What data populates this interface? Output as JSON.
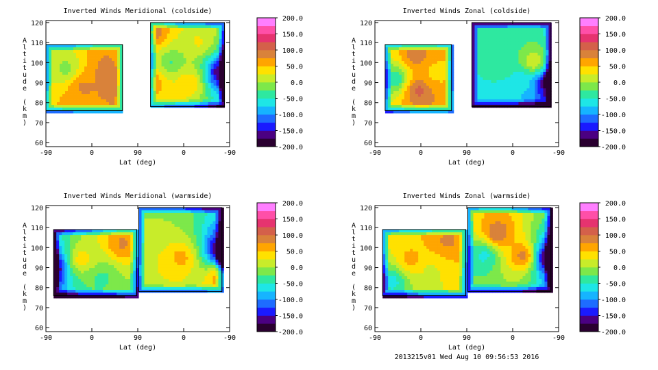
{
  "colors": {
    "background": "#ffffff",
    "axis": "#000000",
    "contour_line": "#000000",
    "colormap": [
      "#2a0030",
      "#4b0082",
      "#1a1aff",
      "#1e6cff",
      "#16b4ff",
      "#1ee6e6",
      "#2ee8a0",
      "#7de84a",
      "#c8ec2a",
      "#ffe100",
      "#ffa500",
      "#d9823a",
      "#d4604a",
      "#e6336f",
      "#ff4fa8",
      "#ff7fff"
    ]
  },
  "footer_text": "2013215v01 Wed Aug 10 09:56:53 2016",
  "chart_data": [
    {
      "type": "contour",
      "title": "Inverted Winds Meridional (coldside)",
      "xlabel": "Lat (deg)",
      "ylabel": "Altitude (km)",
      "x_tick_labels": [
        "-90",
        "0",
        "90",
        "0",
        "-90"
      ],
      "y_ticks": [
        60,
        70,
        80,
        90,
        100,
        110,
        120
      ],
      "ylim": [
        58,
        121
      ],
      "colorbar": {
        "min": -200,
        "max": 200,
        "labels": [
          "200.0",
          "150.0",
          "100.0",
          "50.0",
          "0.0",
          "-50.0",
          "-100.0",
          "-150.0",
          "-200.0"
        ]
      },
      "regions": [
        {
          "lat_range": [
            -90,
            60
          ],
          "alt_range": [
            76,
            109
          ],
          "hot_spots": [
            {
              "lat": -17,
              "alt": 88,
              "value": 80
            },
            {
              "lat": 40,
              "alt": 95,
              "value": 100
            },
            {
              "lat": 50,
              "alt": 101,
              "value": 70
            },
            {
              "lat": -50,
              "alt": 97,
              "value": -10
            }
          ]
        },
        {
          "lat_range": [
            115,
            260
          ],
          "alt_range": [
            78,
            120
          ],
          "hot_spots": [
            {
              "lat": 120,
              "alt": 115,
              "value": 90
            },
            {
              "lat": 120,
              "alt": 90,
              "value": 70
            },
            {
              "lat": 190,
              "alt": 90,
              "value": 50
            },
            {
              "lat": 210,
              "alt": 110,
              "value": 30
            },
            {
              "lat": 155,
              "alt": 100,
              "value": -30
            },
            {
              "lat": 255,
              "alt": 95,
              "value": -190
            }
          ]
        }
      ]
    },
    {
      "type": "contour",
      "title": "Inverted Winds Zonal (coldside)",
      "xlabel": "Lat (deg)",
      "ylabel": "Altitude (km)",
      "x_tick_labels": [
        "-90",
        "0",
        "90",
        "0",
        "-90"
      ],
      "y_ticks": [
        60,
        70,
        80,
        90,
        100,
        110,
        120
      ],
      "ylim": [
        58,
        121
      ],
      "colorbar": {
        "min": -200,
        "max": 200,
        "labels": [
          "200.0",
          "150.0",
          "100.0",
          "50.0",
          "0.0",
          "-50.0",
          "-100.0",
          "-150.0",
          "-200.0"
        ]
      },
      "regions": [
        {
          "lat_range": [
            -70,
            60
          ],
          "alt_range": [
            76,
            109
          ],
          "hot_spots": [
            {
              "lat": -5,
              "alt": 86,
              "value": 110
            },
            {
              "lat": -10,
              "alt": 103,
              "value": 90
            },
            {
              "lat": 30,
              "alt": 95,
              "value": 40
            },
            {
              "lat": -50,
              "alt": 92,
              "value": -50
            }
          ]
        },
        {
          "lat_range": [
            100,
            255
          ],
          "alt_range": [
            78,
            120
          ],
          "hot_spots": [
            {
              "lat": 200,
              "alt": 90,
              "value": -70
            },
            {
              "lat": 160,
              "alt": 98,
              "value": -40
            },
            {
              "lat": 220,
              "alt": 100,
              "value": 30
            },
            {
              "lat": 250,
              "alt": 90,
              "value": -200
            }
          ]
        }
      ]
    },
    {
      "type": "contour",
      "title": "Inverted Winds Meridional (warmside)",
      "xlabel": "Lat (deg)",
      "ylabel": "Altitude (km)",
      "x_tick_labels": [
        "-90",
        "0",
        "90",
        "0",
        "-90"
      ],
      "y_ticks": [
        60,
        70,
        80,
        90,
        100,
        110,
        120
      ],
      "ylim": [
        58,
        121
      ],
      "colorbar": {
        "min": -200,
        "max": 200,
        "labels": [
          "200.0",
          "150.0",
          "100.0",
          "50.0",
          "0.0",
          "-50.0",
          "-100.0",
          "-150.0",
          "-200.0"
        ]
      },
      "regions": [
        {
          "lat_range": [
            -75,
            88
          ],
          "alt_range": [
            76,
            109
          ],
          "hot_spots": [
            {
              "lat": 60,
              "alt": 102,
              "value": 80
            },
            {
              "lat": -20,
              "alt": 94,
              "value": 40
            },
            {
              "lat": -80,
              "alt": 90,
              "value": -200
            },
            {
              "lat": 20,
              "alt": 85,
              "value": -30
            }
          ]
        },
        {
          "lat_range": [
            92,
            255
          ],
          "alt_range": [
            78,
            120
          ],
          "hot_spots": [
            {
              "lat": 175,
              "alt": 95,
              "value": 60
            },
            {
              "lat": 250,
              "alt": 85,
              "value": 70
            },
            {
              "lat": 255,
              "alt": 98,
              "value": -200
            },
            {
              "lat": 130,
              "alt": 112,
              "value": 0
            }
          ]
        }
      ]
    },
    {
      "type": "contour",
      "title": "Inverted Winds Zonal (warmside)",
      "xlabel": "Lat (deg)",
      "ylabel": "Altitude (km)",
      "x_tick_labels": [
        "-90",
        "0",
        "90",
        "0",
        "-90"
      ],
      "y_ticks": [
        60,
        70,
        80,
        90,
        100,
        110,
        120
      ],
      "ylim": [
        58,
        121
      ],
      "colorbar": {
        "min": -200,
        "max": 200,
        "labels": [
          "200.0",
          "150.0",
          "100.0",
          "50.0",
          "0.0",
          "-50.0",
          "-100.0",
          "-150.0",
          "-200.0"
        ]
      },
      "regions": [
        {
          "lat_range": [
            -75,
            88
          ],
          "alt_range": [
            76,
            109
          ],
          "hot_spots": [
            {
              "lat": -20,
              "alt": 94,
              "value": 60
            },
            {
              "lat": 50,
              "alt": 103,
              "value": 80
            },
            {
              "lat": -55,
              "alt": 83,
              "value": -60
            },
            {
              "lat": 20,
              "alt": 88,
              "value": 20
            }
          ]
        },
        {
          "lat_range": [
            92,
            255
          ],
          "alt_range": [
            78,
            120
          ],
          "hot_spots": [
            {
              "lat": 150,
              "alt": 107,
              "value": 100
            },
            {
              "lat": 200,
              "alt": 96,
              "value": 90
            },
            {
              "lat": 125,
              "alt": 96,
              "value": -60
            },
            {
              "lat": 250,
              "alt": 95,
              "value": -200
            }
          ]
        }
      ]
    }
  ]
}
